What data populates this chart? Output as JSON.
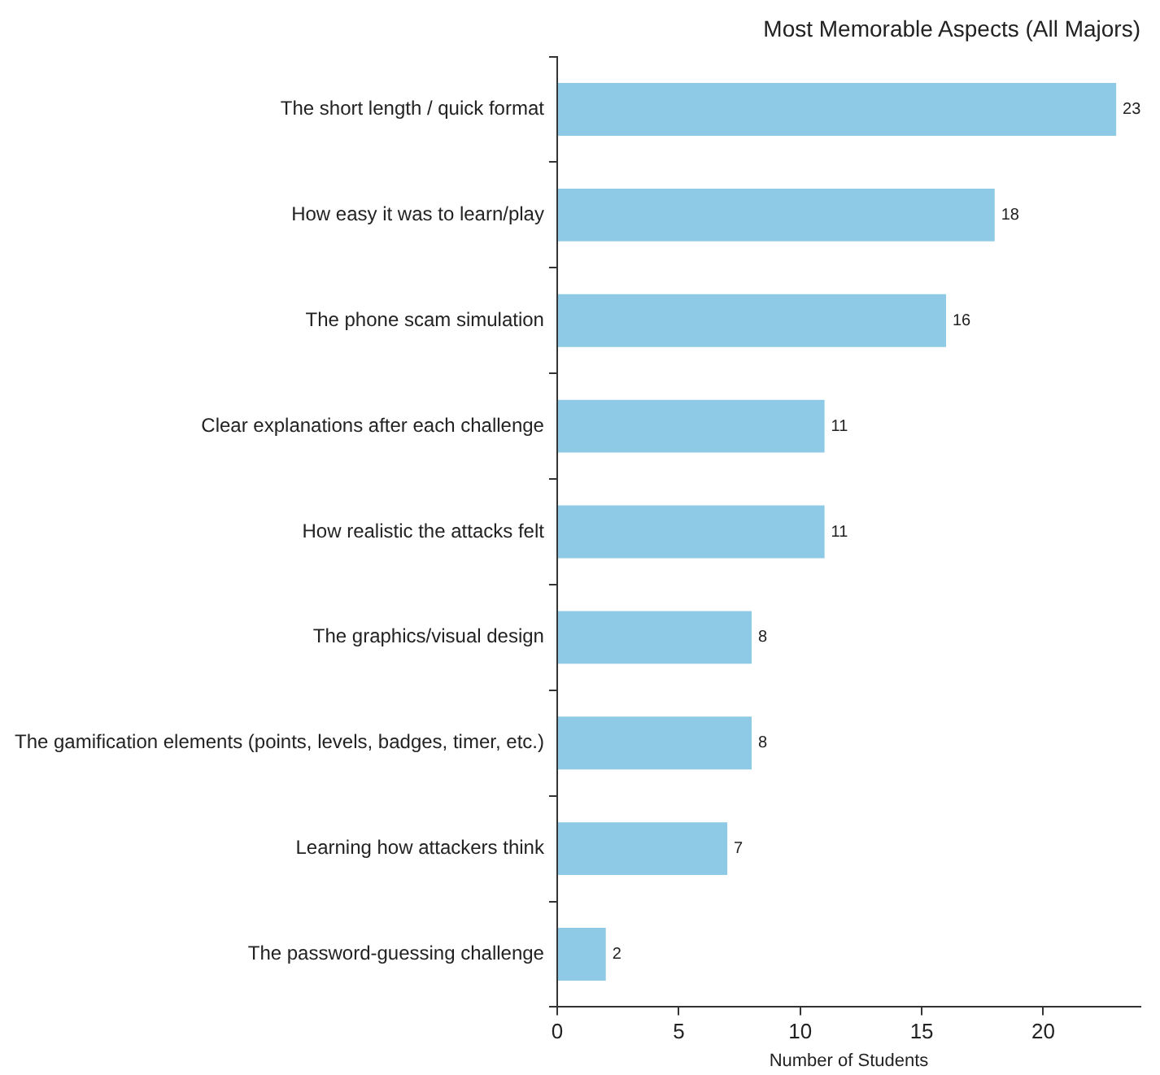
{
  "chart_data": {
    "type": "bar",
    "orientation": "horizontal",
    "title": "Most Memorable Aspects (All Majors)",
    "xlabel": "Number of Students",
    "categories": [
      "The short length / quick format",
      "How easy it was to learn/play",
      "The phone scam simulation",
      "Clear explanations after each challenge",
      "How realistic the attacks felt",
      "The graphics/visual design",
      "The gamification elements (points, levels, badges, timer, etc.)",
      "Learning how attackers think",
      "The password-guessing challenge"
    ],
    "values": [
      23,
      18,
      16,
      11,
      11,
      8,
      8,
      7,
      2
    ],
    "color": "#8ecae6",
    "data_labels": true,
    "grid": false,
    "legend": false,
    "xlim": [
      0,
      24
    ],
    "xticks": [
      0,
      5,
      10,
      15,
      20
    ]
  }
}
